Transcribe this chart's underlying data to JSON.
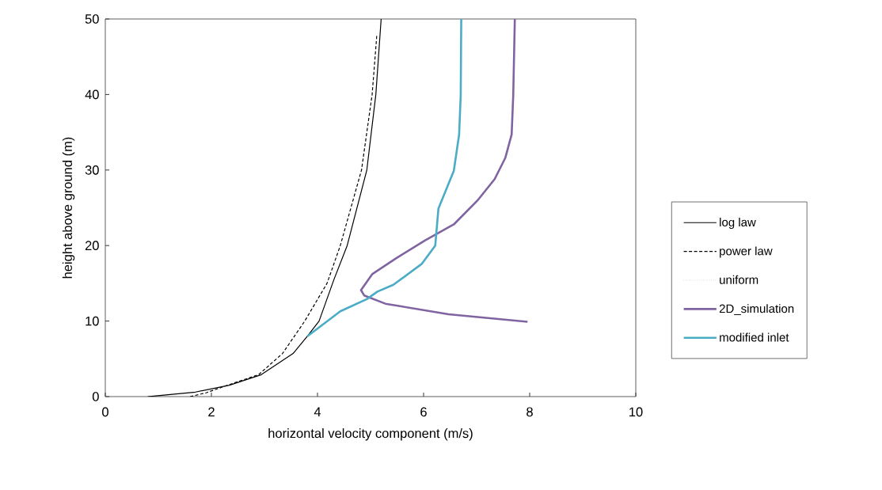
{
  "chart_data": {
    "type": "line",
    "xlabel": "horizontal velocity component (m/s)",
    "ylabel": "height above ground (m)",
    "xlim": [
      0,
      10
    ],
    "ylim": [
      0,
      50
    ],
    "xticks": [
      0,
      2,
      4,
      6,
      8,
      10
    ],
    "yticks": [
      0,
      10,
      20,
      30,
      40,
      50
    ],
    "grid": false,
    "legend": "right",
    "marker": "none",
    "series": [
      {
        "name": "log law",
        "color": "#000000",
        "line_style": "solid",
        "x": [
          0.8,
          0.95,
          1.7,
          2.34,
          2.94,
          3.54,
          3.81,
          4.03,
          4.31,
          4.56,
          4.93,
          5.1,
          5.2
        ],
        "values": [
          0,
          0.1,
          0.6,
          1.5,
          2.9,
          5.7,
          8,
          10,
          15.5,
          20,
          30,
          40,
          50
        ]
      },
      {
        "name": "power law",
        "color": "#000000",
        "line_style": "dashed",
        "x": [
          1.6,
          1.9,
          2.3,
          2.89,
          3.34,
          3.76,
          4.18,
          4.43,
          4.83,
          5.03,
          5.12
        ],
        "values": [
          0,
          0.5,
          1.5,
          2.9,
          5.7,
          10,
          15,
          20,
          30,
          40,
          48
        ]
      },
      {
        "name": "uniform",
        "color": "#808080",
        "line_style": "dotted"
      },
      {
        "name": "2D_simulation",
        "color": "#8064a2",
        "line_style": "solid",
        "x": [
          7.96,
          6.47,
          5.28,
          4.88,
          4.82,
          5.03,
          5.48,
          6.03,
          6.57,
          7.02,
          7.34,
          7.54,
          7.66,
          7.69,
          7.72
        ],
        "values": [
          9.9,
          10.9,
          12.3,
          13.4,
          14.1,
          16.2,
          18.3,
          20.7,
          22.8,
          26,
          28.8,
          31.6,
          34.7,
          39.9,
          50
        ]
      },
      {
        "name": "modified inlet",
        "color": "#4bacc6",
        "line_style": "solid",
        "x": [
          3.81,
          4.43,
          4.93,
          5.13,
          5.43,
          5.97,
          6.22,
          6.28,
          6.57,
          6.67,
          6.7,
          6.71
        ],
        "values": [
          8,
          11.3,
          12.9,
          13.9,
          14.8,
          17.6,
          20,
          24.9,
          29.9,
          34.7,
          39.9,
          50
        ]
      }
    ]
  }
}
